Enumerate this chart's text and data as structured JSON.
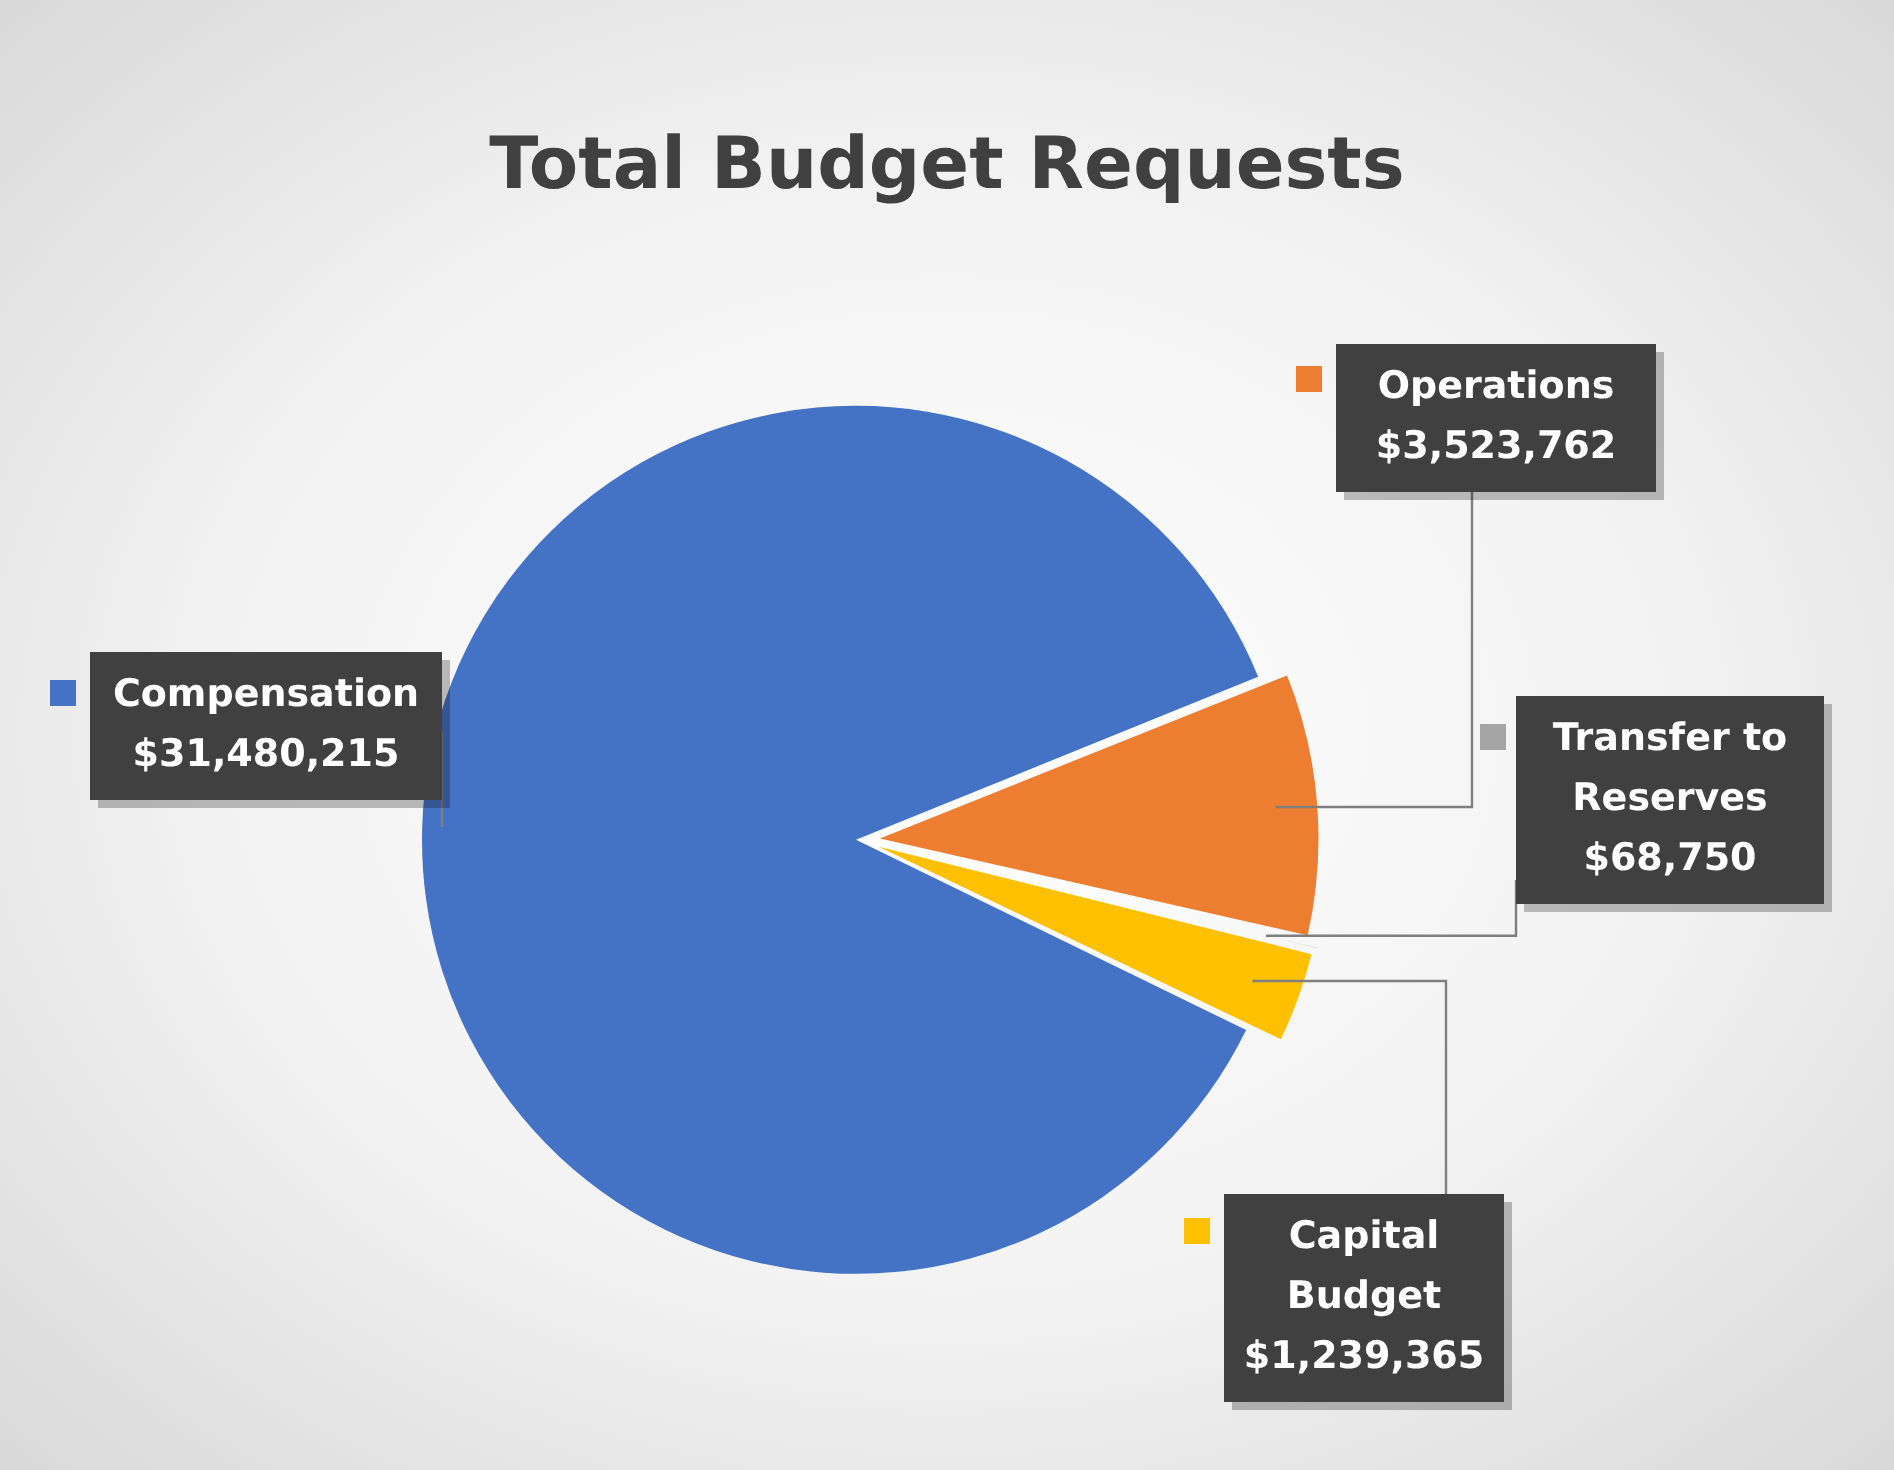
{
  "chart_data": {
    "type": "pie",
    "title": "Total Budget Requests",
    "categories": [
      "Compensation",
      "Operations",
      "Transfer to Reserves",
      "Capital Budget"
    ],
    "values": [
      31480215,
      3523762,
      68750,
      1239365
    ],
    "colors": [
      "#4472c4",
      "#ed7d31",
      "#a5a5a5",
      "#ffc000"
    ],
    "value_labels": [
      "$31,480,215",
      "$3,523,762",
      "$68,750",
      "$1,239,365"
    ],
    "legend": "right"
  }
}
